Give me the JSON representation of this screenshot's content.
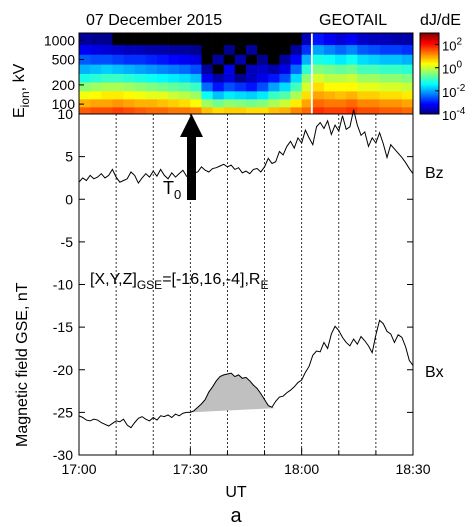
{
  "chart_data": [
    {
      "type": "heatmap",
      "title_left": "07 December 2015",
      "title_right": "GEOTAIL",
      "ylabel": "E",
      "ylabel_sub": "ion",
      "ylabel_unit": ", kV",
      "y_ticks": [
        "1000",
        "500",
        "200",
        "100"
      ],
      "y_scale": "log",
      "ylim": [
        70,
        1300
      ],
      "colorbar": {
        "label": "dJ/dE",
        "scale": "log",
        "range_exp": [
          -4,
          3
        ],
        "ticks": [
          {
            "base": "10",
            "exp": "2"
          },
          {
            "base": "10",
            "exp": "0"
          },
          {
            "base": "10",
            "exp": "-2"
          },
          {
            "base": "10",
            "exp": "-4"
          }
        ]
      },
      "energy_bin_edges_kV": [
        70,
        90,
        120,
        160,
        220,
        300,
        420,
        600,
        850,
        1300
      ],
      "time_bin_edges_min": [
        0,
        3,
        6,
        9,
        12,
        15,
        18,
        21,
        24,
        27,
        30,
        33,
        36,
        39,
        42,
        45,
        48,
        51,
        54,
        57,
        60,
        62.5,
        63,
        66,
        69,
        72,
        75,
        78,
        81,
        84,
        87,
        90
      ],
      "time_bin_note": "columns in minutes after 17:00 UT; last edge 90 = 18:30; gap column 62.5-63 empty",
      "log10_intensity": [
        [
          1.5,
          1.6,
          1.6,
          1.7,
          1.6,
          1.5,
          1.4,
          1.4,
          1.3,
          1.3,
          1.2,
          0.8,
          0.6,
          0.7,
          0.7,
          0.6,
          0.6,
          0.8,
          0.9,
          1.2,
          1.4,
          null,
          1.8,
          1.7,
          1.7,
          1.8,
          1.6,
          1.6,
          1.5,
          1.5,
          1.4
        ],
        [
          0.9,
          1.0,
          1.0,
          1.1,
          1.0,
          0.9,
          0.9,
          0.8,
          0.7,
          0.6,
          0.4,
          -0.3,
          -0.6,
          -0.4,
          -0.5,
          -0.6,
          -0.5,
          -0.2,
          0.0,
          0.5,
          1.0,
          null,
          1.4,
          1.3,
          1.3,
          1.4,
          1.2,
          1.2,
          1.1,
          1.1,
          1.0
        ],
        [
          0.3,
          0.4,
          0.5,
          0.5,
          0.4,
          0.3,
          0.2,
          0.2,
          0.0,
          -0.1,
          -0.3,
          -1.3,
          -1.8,
          -1.5,
          -1.6,
          -1.7,
          -1.5,
          -1.0,
          -0.8,
          -0.2,
          0.6,
          null,
          1.0,
          0.9,
          0.8,
          0.9,
          0.7,
          0.7,
          0.6,
          0.6,
          0.5
        ],
        [
          -0.4,
          -0.3,
          -0.2,
          -0.2,
          -0.3,
          -0.4,
          -0.5,
          -0.6,
          -0.7,
          -0.8,
          -1.0,
          -2.4,
          -3.0,
          -2.6,
          -2.8,
          -3.0,
          -2.6,
          -2.0,
          -1.6,
          -0.9,
          0.1,
          null,
          0.6,
          0.4,
          0.4,
          0.4,
          0.2,
          0.2,
          0.1,
          0.1,
          0.0
        ],
        [
          -1.2,
          -1.1,
          -1.0,
          -1.0,
          -1.1,
          -1.2,
          -1.3,
          -1.4,
          -1.5,
          -1.6,
          -1.8,
          -3.2,
          -3.7,
          -3.4,
          -3.9,
          -3.6,
          -3.3,
          -3.0,
          -2.6,
          -1.6,
          -0.4,
          null,
          0.1,
          -0.1,
          -0.1,
          0.0,
          -0.3,
          -0.3,
          -0.4,
          -0.4,
          -0.5
        ],
        [
          -1.9,
          -1.8,
          -1.7,
          -1.8,
          -1.9,
          -2.0,
          -2.1,
          -2.2,
          -2.3,
          -2.4,
          -2.6,
          -3.8,
          -4.0,
          -3.3,
          -4.0,
          -3.6,
          -3.5,
          -3.7,
          -3.3,
          -2.4,
          -1.1,
          null,
          -0.5,
          -0.6,
          -0.7,
          -0.6,
          -0.9,
          -0.9,
          -1.0,
          -1.0,
          -1.1
        ],
        [
          -2.5,
          -2.6,
          -2.6,
          -2.7,
          -2.8,
          -2.8,
          -2.9,
          -3.0,
          -3.1,
          -3.2,
          -3.3,
          -4.0,
          -3.8,
          -4.0,
          -3.7,
          -4.0,
          -3.9,
          -4.0,
          -3.8,
          -3.1,
          -1.9,
          null,
          -1.2,
          -1.3,
          -1.5,
          -1.3,
          -1.6,
          -1.7,
          -1.8,
          -1.8,
          -1.9
        ],
        [
          -3.2,
          -3.3,
          -3.4,
          -3.5,
          -3.6,
          -3.6,
          -3.7,
          -3.7,
          -3.8,
          -3.8,
          -3.9,
          -4.0,
          -4.0,
          -3.9,
          -4.0,
          -3.8,
          -4.0,
          -4.0,
          -4.0,
          -3.8,
          -2.8,
          null,
          -2.0,
          -2.2,
          -2.4,
          -2.2,
          -2.5,
          -2.6,
          -2.7,
          -2.7,
          -2.8
        ],
        [
          -3.8,
          -3.9,
          -3.9,
          -4.0,
          -4.0,
          -4.0,
          -4.0,
          -4.0,
          -4.0,
          -4.0,
          -4.0,
          -4.0,
          -4.0,
          -4.0,
          -4.0,
          -4.0,
          -4.0,
          -4.0,
          -4.0,
          -4.0,
          -3.6,
          null,
          -3.0,
          -3.2,
          -3.4,
          -3.2,
          -3.5,
          -3.6,
          -3.6,
          -3.7,
          -3.7
        ]
      ],
      "annotation_marker": {
        "label": "T",
        "label_sub": "0",
        "time_min": 30
      }
    },
    {
      "type": "line",
      "xlabel": "UT",
      "ylabel": "Magnetic field GSE, nT",
      "xlim": [
        0,
        90
      ],
      "x_ticks": [
        {
          "min": 0,
          "label": "17:00"
        },
        {
          "min": 30,
          "label": "17:30"
        },
        {
          "min": 60,
          "label": "18:00"
        },
        {
          "min": 90,
          "label": "18:30"
        }
      ],
      "x_minor_ticks_min": [
        10,
        20,
        40,
        50,
        70,
        80
      ],
      "vertical_gridlines_min": [
        10,
        20,
        30,
        40,
        50,
        60,
        70,
        80
      ],
      "ylim": [
        -30,
        10
      ],
      "y_ticks": [
        10,
        5,
        0,
        -5,
        -10,
        -15,
        -20,
        -25,
        -30
      ],
      "annotation": {
        "prefix": "[X,Y,Z]",
        "sub": "GSE",
        "body": "=[-16,16,-4],R",
        "sub2": "E"
      },
      "series": [
        {
          "name": "Bz",
          "x": [
            0,
            1,
            2,
            3,
            4,
            5,
            6,
            7,
            8,
            9,
            10,
            11,
            12,
            13,
            14,
            15,
            16,
            17,
            18,
            19,
            20,
            21,
            22,
            23,
            24,
            25,
            26,
            27,
            28,
            29,
            30,
            31,
            32,
            33,
            34,
            35,
            36,
            37,
            38,
            39,
            40,
            41,
            42,
            43,
            44,
            45,
            46,
            47,
            48,
            49,
            50,
            51,
            52,
            53,
            54,
            55,
            56,
            57,
            58,
            59,
            60,
            61,
            62,
            63,
            64,
            65,
            66,
            67,
            68,
            69,
            70,
            71,
            72,
            73,
            74,
            75,
            76,
            77,
            78,
            79,
            80,
            81,
            82,
            83,
            84,
            85,
            86,
            87,
            88,
            89,
            90
          ],
          "y": [
            2.0,
            2.5,
            2.2,
            2.8,
            2.4,
            2.6,
            3.0,
            2.5,
            2.8,
            3.5,
            2.6,
            2.0,
            2.2,
            2.4,
            3.2,
            2.8,
            1.9,
            2.5,
            3.0,
            2.6,
            3.3,
            2.7,
            3.5,
            2.8,
            2.4,
            3.1,
            2.6,
            3.0,
            3.4,
            2.7,
            2.5,
            3.1,
            3.2,
            3.8,
            3.4,
            3.2,
            3.6,
            3.7,
            3.9,
            4.1,
            3.8,
            4.0,
            3.5,
            3.7,
            3.1,
            3.3,
            3.0,
            3.5,
            3.6,
            3.2,
            3.8,
            4.8,
            4.2,
            4.4,
            5.6,
            5.2,
            6.2,
            6.8,
            6.0,
            7.2,
            6.6,
            8.1,
            7.2,
            6.4,
            8.5,
            9.0,
            8.3,
            9.2,
            7.6,
            8.7,
            8.0,
            9.8,
            8.2,
            8.5,
            10.5,
            8.7,
            7.5,
            7.9,
            6.2,
            7.2,
            6.6,
            7.8,
            6.5,
            4.9,
            6.4,
            5.9,
            5.4,
            4.9,
            4.3,
            3.6,
            3.0
          ]
        },
        {
          "name": "Bx",
          "x": [
            0,
            1,
            2,
            3,
            4,
            5,
            6,
            7,
            8,
            9,
            10,
            11,
            12,
            13,
            14,
            15,
            16,
            17,
            18,
            19,
            20,
            21,
            22,
            23,
            24,
            25,
            26,
            27,
            28,
            29,
            30,
            31,
            32,
            33,
            34,
            35,
            36,
            37,
            38,
            39,
            40,
            41,
            42,
            43,
            44,
            45,
            46,
            47,
            48,
            49,
            50,
            51,
            52,
            53,
            54,
            55,
            56,
            57,
            58,
            59,
            60,
            61,
            62,
            63,
            64,
            65,
            66,
            67,
            68,
            69,
            70,
            71,
            72,
            73,
            74,
            75,
            76,
            77,
            78,
            79,
            80,
            81,
            82,
            83,
            84,
            85,
            86,
            87,
            88,
            89,
            90
          ],
          "y": [
            -25.4,
            -25.6,
            -25.9,
            -26.0,
            -25.8,
            -25.9,
            -26.2,
            -26.4,
            -26.6,
            -26.3,
            -26.0,
            -26.1,
            -25.8,
            -26.5,
            -26.8,
            -26.2,
            -25.7,
            -25.5,
            -25.8,
            -26.0,
            -25.6,
            -25.9,
            -25.4,
            -25.5,
            -25.3,
            -25.6,
            -25.2,
            -25.4,
            -25.1,
            -25.0,
            -25.0,
            -24.8,
            -24.4,
            -24.0,
            -23.5,
            -22.6,
            -22.0,
            -21.3,
            -20.8,
            -20.6,
            -20.5,
            -20.4,
            -20.8,
            -20.6,
            -21.0,
            -20.9,
            -21.3,
            -21.8,
            -22.2,
            -22.8,
            -23.5,
            -24.2,
            -24.4,
            -23.7,
            -23.2,
            -23.1,
            -22.7,
            -22.4,
            -22.0,
            -21.5,
            -21.2,
            -20.3,
            -19.6,
            -18.3,
            -17.8,
            -17.9,
            -16.8,
            -17.5,
            -15.8,
            -14.9,
            -15.4,
            -16.2,
            -16.8,
            -17.2,
            -16.4,
            -17.0,
            -16.1,
            -16.6,
            -17.2,
            -18.0,
            -15.9,
            -14.2,
            -14.6,
            -15.5,
            -15.8,
            -16.8,
            -15.9,
            -16.2,
            -17.3,
            -18.9,
            -19.5
          ]
        }
      ],
      "shaded_region": {
        "color": "#c0c0c0",
        "x": [
          30,
          31,
          32,
          33,
          34,
          35,
          36,
          37,
          38,
          39,
          40,
          41,
          42,
          43,
          44,
          45,
          46,
          47,
          48,
          49,
          50,
          51,
          52,
          53
        ],
        "upper": [
          -25.0,
          -24.8,
          -24.4,
          -24.0,
          -23.5,
          -22.6,
          -22.0,
          -21.3,
          -20.8,
          -20.6,
          -20.5,
          -20.4,
          -20.8,
          -20.6,
          -21.0,
          -20.9,
          -21.3,
          -21.8,
          -22.2,
          -22.8,
          -23.5,
          -24.2,
          -24.4,
          -24.5
        ],
        "baseline_from": {
          "x": 30,
          "y": -25.0
        },
        "baseline_to": {
          "x": 53,
          "y": -24.5
        }
      }
    }
  ],
  "figure": {
    "panel_label": "a"
  }
}
